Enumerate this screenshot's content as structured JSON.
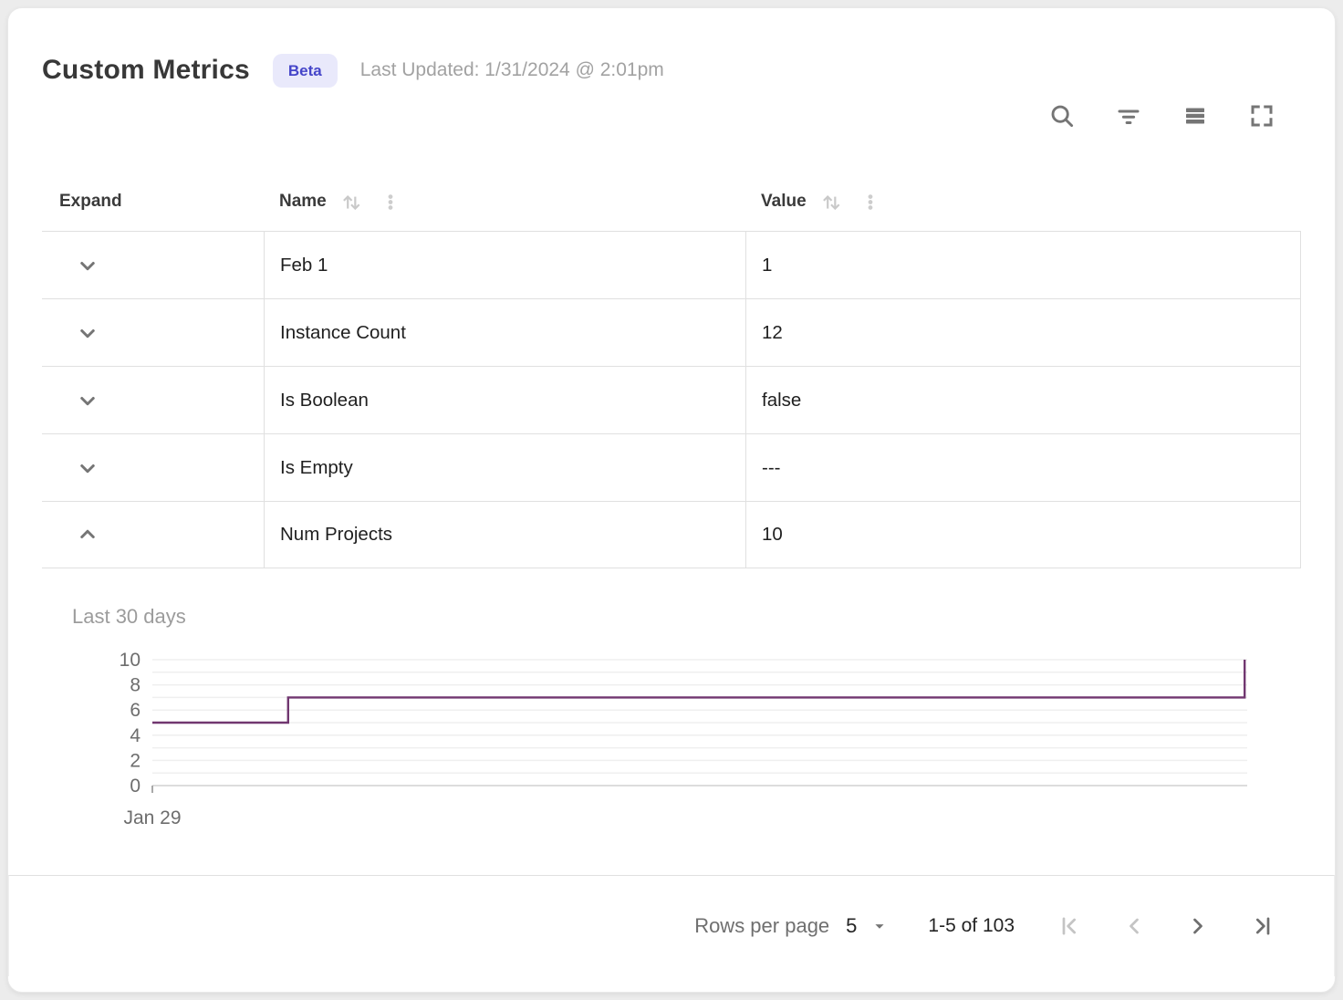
{
  "card": {
    "title": "Custom Metrics",
    "badge": "Beta",
    "last_updated": "Last Updated: 1/31/2024 @ 2:01pm"
  },
  "toolbar": {
    "icons": [
      "search",
      "filter",
      "density",
      "fullscreen"
    ]
  },
  "table": {
    "columns": {
      "expand": "Expand",
      "name": "Name",
      "value": "Value"
    },
    "rows": [
      {
        "name": "Feb 1",
        "value": "1",
        "expanded": false
      },
      {
        "name": "Instance Count",
        "value": "12",
        "expanded": false
      },
      {
        "name": "Is Boolean",
        "value": "false",
        "expanded": false
      },
      {
        "name": "Is Empty",
        "value": "---",
        "expanded": false
      },
      {
        "name": "Num Projects",
        "value": "10",
        "expanded": true
      }
    ]
  },
  "chart_data": {
    "type": "line",
    "subtype": "step",
    "title": "Last 30 days",
    "series": [
      {
        "name": "Num Projects",
        "points": [
          [
            0,
            5
          ],
          [
            3.72,
            5
          ],
          [
            3.72,
            7
          ],
          [
            29.93,
            7
          ],
          [
            29.93,
            10
          ]
        ]
      }
    ],
    "xlim": [
      0,
      30
    ],
    "ylim": [
      0,
      10
    ],
    "yticks": [
      0,
      2,
      4,
      6,
      8,
      10
    ],
    "grid_values": [
      0,
      1,
      2,
      3,
      4,
      5,
      6,
      7,
      8,
      9,
      10
    ],
    "xtick_labels": [
      "Jan 29"
    ],
    "line_color": "#713770",
    "grid": true,
    "legend": "none"
  },
  "footer": {
    "rows_per_page_label": "Rows per page",
    "rows_per_page_value": "5",
    "range_label": "1-5 of 103"
  },
  "colors": {
    "badge_bg": "#e9e9fb",
    "badge_text": "#4545c9",
    "line": "#713770",
    "row_border": "#e0e0e0",
    "grid_line": "#efefef",
    "muted_text": "#9c9c9c",
    "icon": "#757575",
    "disabled_icon": "#c4c4c4"
  }
}
